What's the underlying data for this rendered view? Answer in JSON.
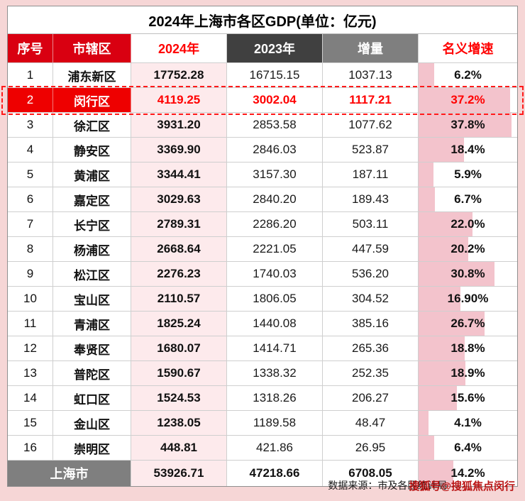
{
  "colors": {
    "page_bg": "#f6d6d6",
    "header_red": "#d90011",
    "highlight_red": "#ee0000",
    "value_red": "#ff0000",
    "dark_gray_header": "#404040",
    "gray_header": "#7f7f7f",
    "pink_fill": "#fdeaec",
    "bar_pink": "#f3c3cc"
  },
  "chart_data": {
    "type": "table",
    "title": "2024年上海市各区GDP(单位：亿元)",
    "columns": [
      "序号",
      "市辖区",
      "2024年",
      "2023年",
      "增量",
      "名义增速"
    ],
    "bar_scale_max_percent": 40,
    "rows": [
      {
        "rank": "1",
        "district": "浦东新区",
        "gdp_2024": "17752.28",
        "gdp_2023": "16715.15",
        "delta": "1037.13",
        "growth": "6.2%",
        "growth_val": 6.2,
        "highlight": false
      },
      {
        "rank": "2",
        "district": "闵行区",
        "gdp_2024": "4119.25",
        "gdp_2023": "3002.04",
        "delta": "1117.21",
        "growth": "37.2%",
        "growth_val": 37.2,
        "highlight": true
      },
      {
        "rank": "3",
        "district": "徐汇区",
        "gdp_2024": "3931.20",
        "gdp_2023": "2853.58",
        "delta": "1077.62",
        "growth": "37.8%",
        "growth_val": 37.8,
        "highlight": false
      },
      {
        "rank": "4",
        "district": "静安区",
        "gdp_2024": "3369.90",
        "gdp_2023": "2846.03",
        "delta": "523.87",
        "growth": "18.4%",
        "growth_val": 18.4,
        "highlight": false
      },
      {
        "rank": "5",
        "district": "黄浦区",
        "gdp_2024": "3344.41",
        "gdp_2023": "3157.30",
        "delta": "187.11",
        "growth": "5.9%",
        "growth_val": 5.9,
        "highlight": false
      },
      {
        "rank": "6",
        "district": "嘉定区",
        "gdp_2024": "3029.63",
        "gdp_2023": "2840.20",
        "delta": "189.43",
        "growth": "6.7%",
        "growth_val": 6.7,
        "highlight": false
      },
      {
        "rank": "7",
        "district": "长宁区",
        "gdp_2024": "2789.31",
        "gdp_2023": "2286.20",
        "delta": "503.11",
        "growth": "22.0%",
        "growth_val": 22.0,
        "highlight": false
      },
      {
        "rank": "8",
        "district": "杨浦区",
        "gdp_2024": "2668.64",
        "gdp_2023": "2221.05",
        "delta": "447.59",
        "growth": "20.2%",
        "growth_val": 20.2,
        "highlight": false
      },
      {
        "rank": "9",
        "district": "松江区",
        "gdp_2024": "2276.23",
        "gdp_2023": "1740.03",
        "delta": "536.20",
        "growth": "30.8%",
        "growth_val": 30.8,
        "highlight": false
      },
      {
        "rank": "10",
        "district": "宝山区",
        "gdp_2024": "2110.57",
        "gdp_2023": "1806.05",
        "delta": "304.52",
        "growth": "16.90%",
        "growth_val": 16.9,
        "highlight": false
      },
      {
        "rank": "11",
        "district": "青浦区",
        "gdp_2024": "1825.24",
        "gdp_2023": "1440.08",
        "delta": "385.16",
        "growth": "26.7%",
        "growth_val": 26.7,
        "highlight": false
      },
      {
        "rank": "12",
        "district": "奉贤区",
        "gdp_2024": "1680.07",
        "gdp_2023": "1414.71",
        "delta": "265.36",
        "growth": "18.8%",
        "growth_val": 18.8,
        "highlight": false
      },
      {
        "rank": "13",
        "district": "普陀区",
        "gdp_2024": "1590.67",
        "gdp_2023": "1338.32",
        "delta": "252.35",
        "growth": "18.9%",
        "growth_val": 18.9,
        "highlight": false
      },
      {
        "rank": "14",
        "district": "虹口区",
        "gdp_2024": "1524.53",
        "gdp_2023": "1318.26",
        "delta": "206.27",
        "growth": "15.6%",
        "growth_val": 15.6,
        "highlight": false
      },
      {
        "rank": "15",
        "district": "金山区",
        "gdp_2024": "1238.05",
        "gdp_2023": "1189.58",
        "delta": "48.47",
        "growth": "4.1%",
        "growth_val": 4.1,
        "highlight": false
      },
      {
        "rank": "16",
        "district": "崇明区",
        "gdp_2024": "448.81",
        "gdp_2023": "421.86",
        "delta": "26.95",
        "growth": "6.4%",
        "growth_val": 6.4,
        "highlight": false
      }
    ],
    "total_row": {
      "label": "上海市",
      "gdp_2024": "53926.71",
      "gdp_2023": "47218.66",
      "delta": "6708.05",
      "growth": "14.2%",
      "growth_val": 14.2
    },
    "source": "数据来源：市及各区统计局",
    "watermark": "搜狐号@搜狐焦点闵行"
  }
}
